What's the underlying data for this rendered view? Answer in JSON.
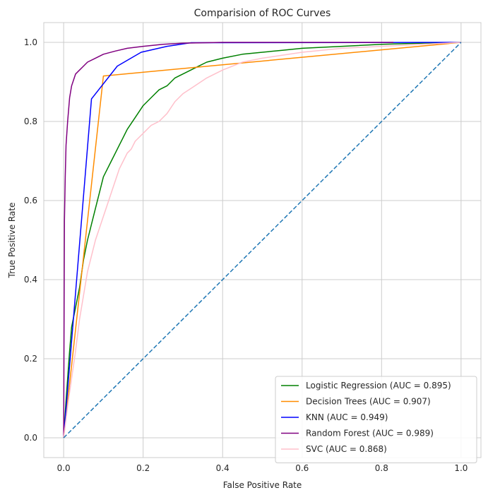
{
  "chart_data": {
    "type": "line",
    "title": "Comparision of ROC Curves",
    "xlabel": "False Positive Rate",
    "ylabel": "True Positive Rate",
    "xlim": [
      -0.05,
      1.05
    ],
    "ylim": [
      -0.05,
      1.05
    ],
    "x_ticks": [
      0.0,
      0.2,
      0.4,
      0.6,
      0.8,
      1.0
    ],
    "y_ticks": [
      0.0,
      0.2,
      0.4,
      0.6,
      0.8,
      1.0
    ],
    "x_tick_labels": [
      "0.0",
      "0.2",
      "0.4",
      "0.6",
      "0.8",
      "1.0"
    ],
    "y_tick_labels": [
      "0.0",
      "0.2",
      "0.4",
      "0.6",
      "0.8",
      "1.0"
    ],
    "grid": true,
    "legend_position": "lower-right",
    "background_color": "#ffffff",
    "grid_color": "#cccccc",
    "series": [
      {
        "name": "Logistic Regression (AUC = 0.895)",
        "color": "#008000",
        "dashed": false,
        "points": [
          [
            0,
            0
          ],
          [
            0.005,
            0.08
          ],
          [
            0.01,
            0.15
          ],
          [
            0.015,
            0.22
          ],
          [
            0.02,
            0.28
          ],
          [
            0.03,
            0.33
          ],
          [
            0.04,
            0.38
          ],
          [
            0.05,
            0.45
          ],
          [
            0.06,
            0.5
          ],
          [
            0.07,
            0.54
          ],
          [
            0.08,
            0.58
          ],
          [
            0.09,
            0.62
          ],
          [
            0.1,
            0.66
          ],
          [
            0.11,
            0.68
          ],
          [
            0.12,
            0.7
          ],
          [
            0.13,
            0.72
          ],
          [
            0.14,
            0.74
          ],
          [
            0.15,
            0.76
          ],
          [
            0.16,
            0.78
          ],
          [
            0.18,
            0.81
          ],
          [
            0.2,
            0.84
          ],
          [
            0.22,
            0.86
          ],
          [
            0.24,
            0.88
          ],
          [
            0.26,
            0.89
          ],
          [
            0.28,
            0.91
          ],
          [
            0.3,
            0.92
          ],
          [
            0.32,
            0.93
          ],
          [
            0.34,
            0.94
          ],
          [
            0.36,
            0.95
          ],
          [
            0.4,
            0.96
          ],
          [
            0.45,
            0.97
          ],
          [
            0.5,
            0.975
          ],
          [
            0.55,
            0.98
          ],
          [
            0.6,
            0.985
          ],
          [
            0.7,
            0.99
          ],
          [
            0.8,
            0.995
          ],
          [
            0.9,
            0.998
          ],
          [
            1.0,
            1.0
          ]
        ]
      },
      {
        "name": "Decision Trees (AUC = 0.907)",
        "color": "#ff8c00",
        "dashed": false,
        "points": [
          [
            0,
            0
          ],
          [
            0.1,
            0.915
          ],
          [
            1.0,
            1.0
          ]
        ]
      },
      {
        "name": "KNN (AUC = 0.949)",
        "color": "#0000ff",
        "dashed": false,
        "points": [
          [
            0,
            0
          ],
          [
            0.07,
            0.857
          ],
          [
            0.135,
            0.94
          ],
          [
            0.195,
            0.975
          ],
          [
            0.26,
            0.99
          ],
          [
            0.32,
            0.999
          ],
          [
            1.0,
            1.0
          ]
        ]
      },
      {
        "name": "Random Forest (AUC = 0.989)",
        "color": "#800080",
        "dashed": false,
        "points": [
          [
            0,
            0
          ],
          [
            0.002,
            0.55
          ],
          [
            0.004,
            0.66
          ],
          [
            0.006,
            0.74
          ],
          [
            0.01,
            0.8
          ],
          [
            0.015,
            0.86
          ],
          [
            0.02,
            0.89
          ],
          [
            0.03,
            0.92
          ],
          [
            0.04,
            0.93
          ],
          [
            0.05,
            0.94
          ],
          [
            0.06,
            0.95
          ],
          [
            0.08,
            0.96
          ],
          [
            0.1,
            0.97
          ],
          [
            0.13,
            0.978
          ],
          [
            0.16,
            0.985
          ],
          [
            0.2,
            0.99
          ],
          [
            0.25,
            0.995
          ],
          [
            0.3,
            0.998
          ],
          [
            0.4,
            1.0
          ],
          [
            0.83,
            1.0
          ]
        ]
      },
      {
        "name": "SVC (AUC = 0.868)",
        "color": "#ffc0cb",
        "dashed": false,
        "points": [
          [
            0,
            0
          ],
          [
            0.01,
            0.08
          ],
          [
            0.02,
            0.15
          ],
          [
            0.03,
            0.22
          ],
          [
            0.04,
            0.3
          ],
          [
            0.05,
            0.36
          ],
          [
            0.06,
            0.42
          ],
          [
            0.07,
            0.46
          ],
          [
            0.08,
            0.5
          ],
          [
            0.09,
            0.53
          ],
          [
            0.1,
            0.56
          ],
          [
            0.11,
            0.59
          ],
          [
            0.12,
            0.62
          ],
          [
            0.13,
            0.65
          ],
          [
            0.14,
            0.68
          ],
          [
            0.15,
            0.7
          ],
          [
            0.16,
            0.72
          ],
          [
            0.17,
            0.73
          ],
          [
            0.18,
            0.75
          ],
          [
            0.2,
            0.77
          ],
          [
            0.22,
            0.79
          ],
          [
            0.24,
            0.8
          ],
          [
            0.26,
            0.82
          ],
          [
            0.28,
            0.85
          ],
          [
            0.3,
            0.87
          ],
          [
            0.33,
            0.89
          ],
          [
            0.36,
            0.91
          ],
          [
            0.4,
            0.93
          ],
          [
            0.45,
            0.95
          ],
          [
            0.5,
            0.96
          ],
          [
            0.6,
            0.975
          ],
          [
            0.7,
            0.985
          ],
          [
            0.8,
            0.99
          ],
          [
            0.9,
            0.995
          ],
          [
            1.0,
            1.0
          ]
        ]
      },
      {
        "name": "",
        "color": "#1f77b4",
        "dashed": true,
        "points": [
          [
            0,
            0
          ],
          [
            1,
            1
          ]
        ]
      }
    ]
  }
}
